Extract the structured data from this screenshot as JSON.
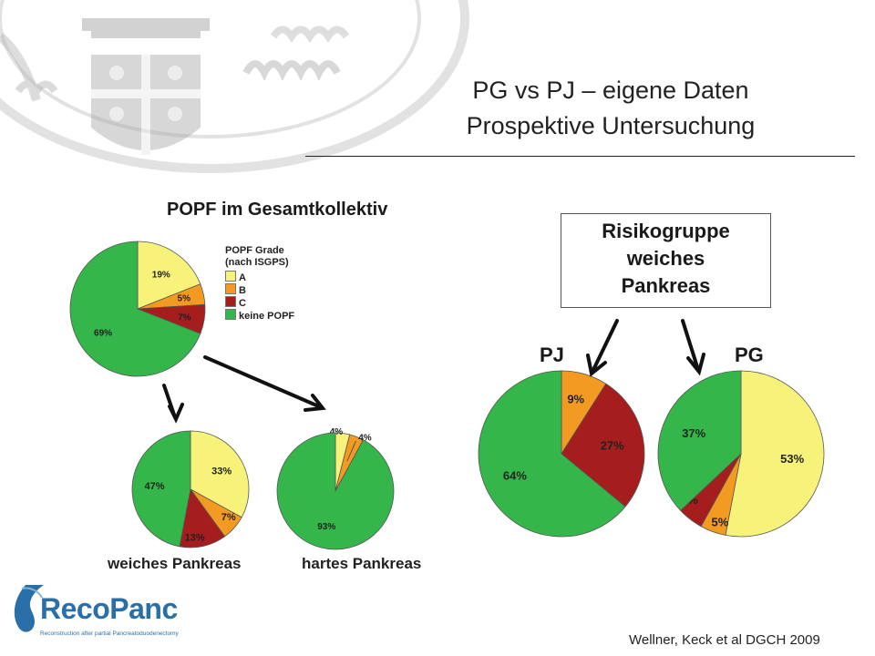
{
  "slide": {
    "title_line1": "PG vs PJ – eigene Daten",
    "title_line2": "Prospektive Untersuchung",
    "subtitle_left": "POPF im Gesamtkollektiv",
    "risk_box": [
      "Risikogruppe",
      "weiches",
      "Pankreas"
    ],
    "label_pj": "PJ",
    "label_pg": "PG",
    "caption_soft": "weiches Pankreas",
    "caption_hard": "hartes Pankreas",
    "citation": "Wellner, Keck et al DGCH 2009",
    "legend_title": [
      "POPF Grade",
      "(nach ISGPS)"
    ],
    "logo_text": "RecoPanc",
    "logo_subtext": "Reconstruction after partial Pancreatoduodenectomy"
  },
  "colors": {
    "A": "#f7f37a",
    "B": "#f39a22",
    "C": "#a51d1d",
    "none": "#34b64a",
    "logo_blue": "#2b6fa8"
  },
  "chart_data": [
    {
      "type": "pie",
      "title": "POPF im Gesamtkollektiv",
      "legend_title": "POPF Grade (nach ISGPS)",
      "legend": [
        "A",
        "B",
        "C",
        "keine POPF"
      ],
      "slices": [
        {
          "name": "A",
          "value": 19,
          "label": "19%"
        },
        {
          "name": "B",
          "value": 5,
          "label": "5%"
        },
        {
          "name": "C",
          "value": 7,
          "label": "7%"
        },
        {
          "name": "keine POPF",
          "value": 69,
          "label": "69%"
        }
      ]
    },
    {
      "type": "pie",
      "caption": "weiches Pankreas",
      "slices": [
        {
          "name": "A",
          "value": 33,
          "label": "33%"
        },
        {
          "name": "B",
          "value": 7,
          "label": "7%"
        },
        {
          "name": "C",
          "value": 13,
          "label": "13%"
        },
        {
          "name": "keine POPF",
          "value": 47,
          "label": "47%"
        }
      ]
    },
    {
      "type": "pie",
      "caption": "hartes Pankreas",
      "slices": [
        {
          "name": "A",
          "value": 4,
          "label": "4%"
        },
        {
          "name": "B",
          "value": 4,
          "label": "4%"
        },
        {
          "name": "keine POPF",
          "value": 93,
          "label": "93%"
        }
      ]
    },
    {
      "type": "pie",
      "caption": "PJ",
      "slices": [
        {
          "name": "B",
          "value": 9,
          "label": "9%"
        },
        {
          "name": "C",
          "value": 27,
          "label": "27%"
        },
        {
          "name": "keine POPF",
          "value": 64,
          "label": "64%"
        }
      ]
    },
    {
      "type": "pie",
      "caption": "PG",
      "slices": [
        {
          "name": "A",
          "value": 53,
          "label": "53%"
        },
        {
          "name": "B",
          "value": 5,
          "label": "5%"
        },
        {
          "name": "C",
          "value": 5,
          "label": "5%"
        },
        {
          "name": "keine POPF",
          "value": 37,
          "label": "37%"
        }
      ]
    }
  ]
}
